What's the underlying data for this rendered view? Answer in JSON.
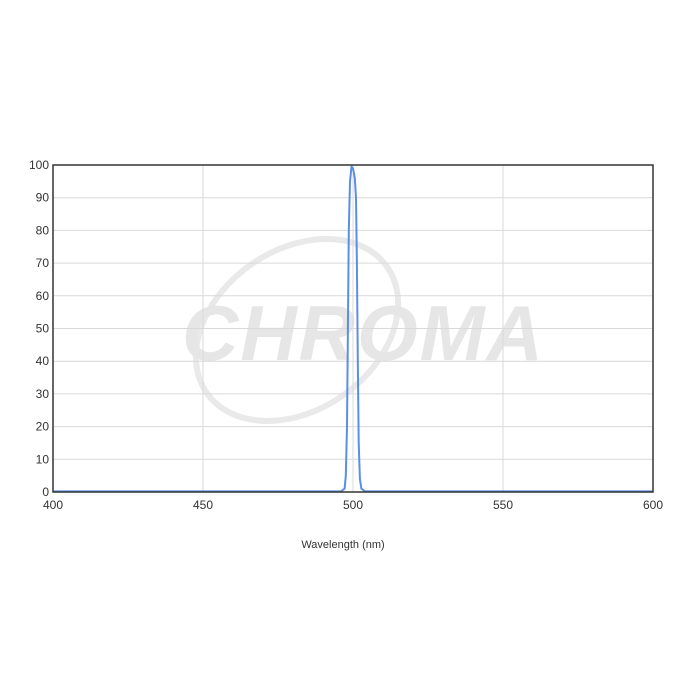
{
  "chart_data": {
    "type": "line",
    "title": "",
    "xlabel": "Wavelength (nm)",
    "ylabel": "",
    "xlim": [
      400,
      600
    ],
    "ylim": [
      0,
      100
    ],
    "x_ticks": [
      400,
      450,
      500,
      550,
      600
    ],
    "y_ticks": [
      0,
      10,
      20,
      30,
      40,
      50,
      60,
      70,
      80,
      90,
      100
    ],
    "grid": true,
    "legend": "none",
    "series": [
      {
        "color": "#5b8ee6",
        "points": [
          [
            400,
            0.2
          ],
          [
            496,
            0.2
          ],
          [
            497.2,
            1
          ],
          [
            497.6,
            5
          ],
          [
            498,
            20
          ],
          [
            498.3,
            50
          ],
          [
            498.6,
            80
          ],
          [
            499,
            95
          ],
          [
            499.5,
            99.5
          ],
          [
            500,
            99
          ],
          [
            500.6,
            96
          ],
          [
            501,
            90
          ],
          [
            501.3,
            70
          ],
          [
            501.6,
            40
          ],
          [
            501.9,
            15
          ],
          [
            502.3,
            4
          ],
          [
            502.8,
            1
          ],
          [
            504,
            0.2
          ],
          [
            600,
            0.2
          ]
        ]
      }
    ]
  },
  "watermark": {
    "text": "CHROMA",
    "color": "#e6e6e6"
  }
}
